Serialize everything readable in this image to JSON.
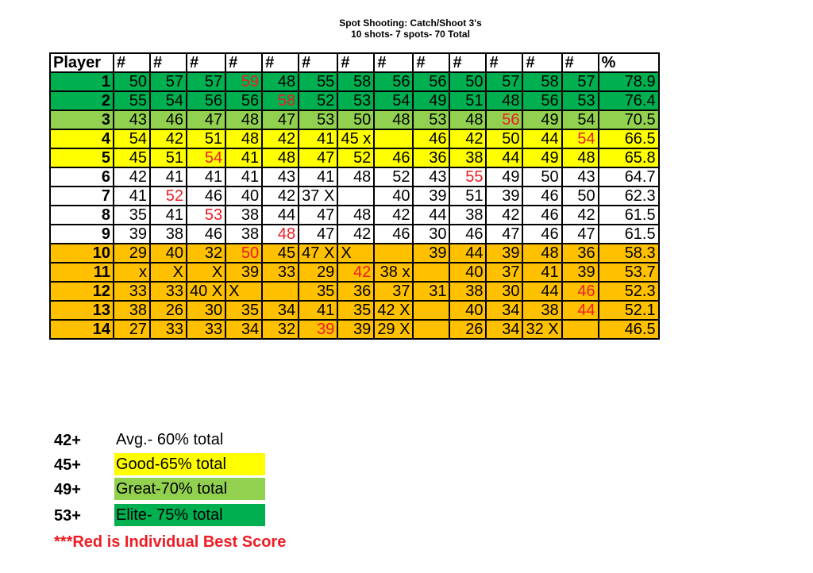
{
  "title": {
    "line1": "Spot Shooting: Catch/Shoot 3's",
    "line2": "10 shots- 7 spots- 70 Total"
  },
  "colors": {
    "elite": "#00b050",
    "great": "#92d050",
    "good": "#ffff00",
    "below": "#ffc000",
    "avg": "#ffffff",
    "best": "#ee1c24"
  },
  "table": {
    "headers": [
      "Player",
      "#",
      "#",
      "#",
      "#",
      "#",
      "#",
      "#",
      "#",
      "#",
      "#",
      "#",
      "#",
      "#",
      "%"
    ],
    "rows": [
      {
        "player": "1",
        "tier": "elite",
        "pct": "78.9",
        "cells": [
          {
            "v": "50"
          },
          {
            "v": "57"
          },
          {
            "v": "57"
          },
          {
            "v": "59",
            "red": true
          },
          {
            "v": "48"
          },
          {
            "v": "55"
          },
          {
            "v": "58"
          },
          {
            "v": "56"
          },
          {
            "v": "56"
          },
          {
            "v": "50"
          },
          {
            "v": "57"
          },
          {
            "v": "58"
          },
          {
            "v": "57"
          }
        ]
      },
      {
        "player": "2",
        "tier": "elite",
        "pct": "76.4",
        "cells": [
          {
            "v": "55"
          },
          {
            "v": "54"
          },
          {
            "v": "56"
          },
          {
            "v": "56"
          },
          {
            "v": "58",
            "red": true
          },
          {
            "v": "52"
          },
          {
            "v": "53"
          },
          {
            "v": "54"
          },
          {
            "v": "49"
          },
          {
            "v": "51"
          },
          {
            "v": "48"
          },
          {
            "v": "56"
          },
          {
            "v": "53"
          }
        ]
      },
      {
        "player": "3",
        "tier": "great",
        "pct": "70.5",
        "cells": [
          {
            "v": "43"
          },
          {
            "v": "46"
          },
          {
            "v": "47"
          },
          {
            "v": "48"
          },
          {
            "v": "47"
          },
          {
            "v": "53"
          },
          {
            "v": "50"
          },
          {
            "v": "48"
          },
          {
            "v": "53"
          },
          {
            "v": "48"
          },
          {
            "v": "56",
            "red": true
          },
          {
            "v": "49"
          },
          {
            "v": "54"
          }
        ]
      },
      {
        "player": "4",
        "tier": "good",
        "pct": "66.5",
        "cells": [
          {
            "v": "54"
          },
          {
            "v": "42"
          },
          {
            "v": "51"
          },
          {
            "v": "48"
          },
          {
            "v": "42"
          },
          {
            "v": "41"
          },
          {
            "v": "45 x"
          },
          {
            "v": ""
          },
          {
            "v": "46"
          },
          {
            "v": "42"
          },
          {
            "v": "50"
          },
          {
            "v": "44"
          },
          {
            "v": "54",
            "red": true
          }
        ]
      },
      {
        "player": "5",
        "tier": "good",
        "pct": "65.8",
        "cells": [
          {
            "v": "45"
          },
          {
            "v": "51"
          },
          {
            "v": "54",
            "red": true
          },
          {
            "v": "41"
          },
          {
            "v": "48"
          },
          {
            "v": "47"
          },
          {
            "v": "52"
          },
          {
            "v": "46"
          },
          {
            "v": "36"
          },
          {
            "v": "38"
          },
          {
            "v": "44"
          },
          {
            "v": "49"
          },
          {
            "v": "48"
          }
        ]
      },
      {
        "player": "6",
        "tier": "avg",
        "pct": "64.7",
        "cells": [
          {
            "v": "42"
          },
          {
            "v": "41"
          },
          {
            "v": "41"
          },
          {
            "v": "41"
          },
          {
            "v": "43"
          },
          {
            "v": "41"
          },
          {
            "v": "48"
          },
          {
            "v": "52"
          },
          {
            "v": "43"
          },
          {
            "v": "55",
            "red": true
          },
          {
            "v": "49"
          },
          {
            "v": "50"
          },
          {
            "v": "43"
          }
        ]
      },
      {
        "player": "7",
        "tier": "avg",
        "pct": "62.3",
        "cells": [
          {
            "v": "41"
          },
          {
            "v": "52",
            "red": true
          },
          {
            "v": "46"
          },
          {
            "v": "40"
          },
          {
            "v": "42"
          },
          {
            "v": "37 X"
          },
          {
            "v": ""
          },
          {
            "v": "40"
          },
          {
            "v": "39"
          },
          {
            "v": "51"
          },
          {
            "v": "39"
          },
          {
            "v": "46"
          },
          {
            "v": "50"
          }
        ]
      },
      {
        "player": "8",
        "tier": "avg",
        "pct": "61.5",
        "cells": [
          {
            "v": "35"
          },
          {
            "v": "41"
          },
          {
            "v": "53",
            "red": true
          },
          {
            "v": "38"
          },
          {
            "v": "44"
          },
          {
            "v": "47"
          },
          {
            "v": "48"
          },
          {
            "v": "42"
          },
          {
            "v": "44"
          },
          {
            "v": "38"
          },
          {
            "v": "42"
          },
          {
            "v": "46"
          },
          {
            "v": "42"
          }
        ]
      },
      {
        "player": "9",
        "tier": "avg",
        "pct": "61.5",
        "cells": [
          {
            "v": "39"
          },
          {
            "v": "38"
          },
          {
            "v": "46"
          },
          {
            "v": "38"
          },
          {
            "v": "48",
            "red": true
          },
          {
            "v": "47"
          },
          {
            "v": "42"
          },
          {
            "v": "46"
          },
          {
            "v": "30"
          },
          {
            "v": "46"
          },
          {
            "v": "47"
          },
          {
            "v": "46"
          },
          {
            "v": "47"
          }
        ]
      },
      {
        "player": "10",
        "tier": "below",
        "pct": "58.3",
        "cells": [
          {
            "v": "29"
          },
          {
            "v": "40"
          },
          {
            "v": "32"
          },
          {
            "v": "50",
            "red": true
          },
          {
            "v": "45"
          },
          {
            "v": "47 X"
          },
          {
            "v": "X",
            "left": true
          },
          {
            "v": ""
          },
          {
            "v": "39"
          },
          {
            "v": "44"
          },
          {
            "v": "39"
          },
          {
            "v": "48"
          },
          {
            "v": "36"
          }
        ]
      },
      {
        "player": "11",
        "tier": "below",
        "pct": "53.7",
        "cells": [
          {
            "v": "x"
          },
          {
            "v": "X"
          },
          {
            "v": "X"
          },
          {
            "v": "39"
          },
          {
            "v": "33"
          },
          {
            "v": "29"
          },
          {
            "v": "42",
            "red": true
          },
          {
            "v": "38 x"
          },
          {
            "v": ""
          },
          {
            "v": "40"
          },
          {
            "v": "37"
          },
          {
            "v": "41"
          },
          {
            "v": "39"
          }
        ]
      },
      {
        "player": "12",
        "tier": "below",
        "pct": "52.3",
        "cells": [
          {
            "v": "33"
          },
          {
            "v": "33"
          },
          {
            "v": "40 X"
          },
          {
            "v": "X",
            "left": true
          },
          {
            "v": ""
          },
          {
            "v": "35"
          },
          {
            "v": "36"
          },
          {
            "v": "37"
          },
          {
            "v": "31"
          },
          {
            "v": "38"
          },
          {
            "v": "30"
          },
          {
            "v": "44"
          },
          {
            "v": "46",
            "red": true
          }
        ]
      },
      {
        "player": "13",
        "tier": "below",
        "pct": "52.1",
        "cells": [
          {
            "v": "38"
          },
          {
            "v": "26"
          },
          {
            "v": "30"
          },
          {
            "v": "35"
          },
          {
            "v": "34"
          },
          {
            "v": "41"
          },
          {
            "v": "35"
          },
          {
            "v": "42 X"
          },
          {
            "v": ""
          },
          {
            "v": "40"
          },
          {
            "v": "34"
          },
          {
            "v": "38"
          },
          {
            "v": "44",
            "red": true
          }
        ]
      },
      {
        "player": "14",
        "tier": "below",
        "pct": "46.5",
        "cells": [
          {
            "v": "27"
          },
          {
            "v": "33"
          },
          {
            "v": "33"
          },
          {
            "v": "34"
          },
          {
            "v": "32"
          },
          {
            "v": "39",
            "red": true
          },
          {
            "v": "39"
          },
          {
            "v": "29 X"
          },
          {
            "v": ""
          },
          {
            "v": "26"
          },
          {
            "v": "34"
          },
          {
            "v": "32 X"
          },
          {
            "v": ""
          }
        ]
      }
    ]
  },
  "legend": [
    {
      "key": "42+",
      "label": "Avg.- 60% total",
      "tier": "avg"
    },
    {
      "key": "45+",
      "label": "Good-65% total",
      "tier": "good"
    },
    {
      "key": "49+",
      "label": "Great-70% total",
      "tier": "great"
    },
    {
      "key": "53+",
      "label": "Elite- 75% total",
      "tier": "elite"
    }
  ],
  "note": "***Red is Individual Best Score"
}
